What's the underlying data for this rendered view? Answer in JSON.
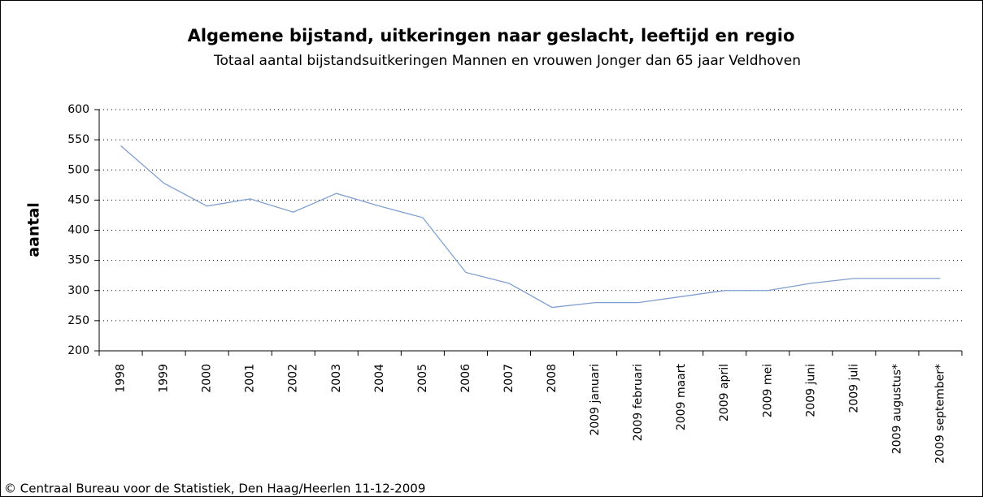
{
  "chart_data": {
    "type": "line",
    "title": "Algemene bijstand, uitkeringen naar geslacht, leeftijd en regio",
    "subtitle": "Totaal aantal bijstandsuitkeringen Mannen en vrouwen Jonger dan 65 jaar Veldhoven",
    "y_label": "aantal",
    "footer": "© Centraal Bureau voor de Statistiek, Den Haag/Heerlen 11-12-2009",
    "categories": [
      "1998",
      "1999",
      "2000",
      "2001",
      "2002",
      "2003",
      "2004",
      "2005",
      "2006",
      "2007",
      "2008",
      "2009 januari",
      "2009 februari",
      "2009 maart",
      "2009 april",
      "2009 mei",
      "2009 juni",
      "2009 juli",
      "2009 augustus*",
      "2009 september*"
    ],
    "series": [
      {
        "name": "aantal",
        "color": "#7f9fd0",
        "values": [
          540,
          478,
          440,
          452,
          430,
          461,
          440,
          421,
          330,
          312,
          272,
          280,
          280,
          290,
          300,
          300,
          312,
          320,
          320,
          320
        ]
      }
    ],
    "ylim": [
      200,
      600
    ],
    "yticks": [
      200,
      250,
      300,
      350,
      400,
      450,
      500,
      550,
      600
    ],
    "grid": true
  }
}
